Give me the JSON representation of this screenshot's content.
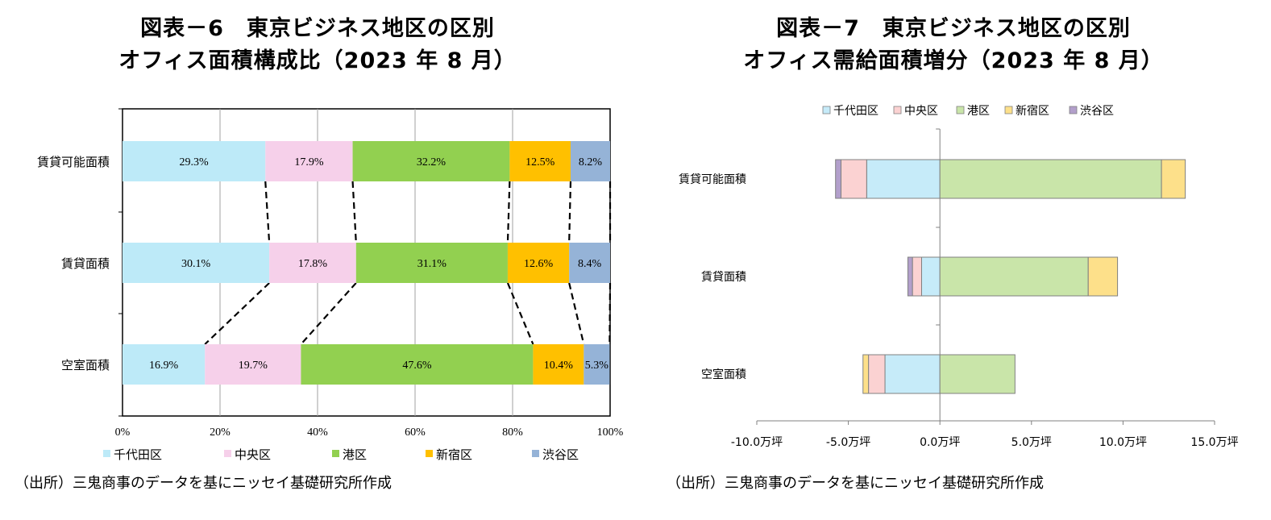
{
  "charts": {
    "left": {
      "title_line1": "図表－6　東京ビジネス地区の区別",
      "title_line2": "オフィス面積構成比（2023 年 8 月）",
      "source": "（出所）三鬼商事のデータを基にニッセイ基礎研究所作成"
    },
    "right": {
      "title_line1": "図表－7　東京ビジネス地区の区別",
      "title_line2": "オフィス需給面積増分（2023 年 8 月）",
      "source": "（出所）三鬼商事のデータを基にニッセイ基礎研究所作成"
    }
  },
  "chart_data": [
    {
      "type": "bar",
      "orientation": "horizontal",
      "stacked": "percent",
      "title": "図表－6　東京ビジネス地区の区別 オフィス面積構成比（2023 年 8 月）",
      "categories": [
        "賃貸可能面積",
        "賃貸面積",
        "空室面積"
      ],
      "series": [
        {
          "name": "千代田区",
          "color": "#bdeaf8",
          "values": [
            29.3,
            30.1,
            16.9
          ],
          "labels": [
            "29.3%",
            "30.1%",
            "16.9%"
          ]
        },
        {
          "name": "中央区",
          "color": "#f6d0ea",
          "values": [
            17.9,
            17.8,
            19.7
          ],
          "labels": [
            "17.9%",
            "17.8%",
            "19.7%"
          ]
        },
        {
          "name": "港区",
          "color": "#92d050",
          "values": [
            32.2,
            31.1,
            47.6
          ],
          "labels": [
            "32.2%",
            "31.1%",
            "47.6%"
          ]
        },
        {
          "name": "新宿区",
          "color": "#ffc000",
          "values": [
            12.5,
            12.6,
            10.4
          ],
          "labels": [
            "12.5%",
            "12.6%",
            "10.4%"
          ]
        },
        {
          "name": "渋谷区",
          "color": "#95b3d7",
          "values": [
            8.2,
            8.4,
            5.3
          ],
          "labels": [
            "8.2%",
            "8.4%",
            "5.3%"
          ]
        }
      ],
      "x_ticks": [
        "0%",
        "20%",
        "40%",
        "60%",
        "80%",
        "100%"
      ],
      "xlim": [
        0,
        100
      ],
      "grid": "vertical",
      "legend": "bottom",
      "connector_lines": "dashed"
    },
    {
      "type": "bar",
      "orientation": "horizontal",
      "stacked": "diverging",
      "title": "図表－7　東京ビジネス地区の区別 オフィス需給面積増分（2023 年 8 月）",
      "categories": [
        "賃貸可能面積",
        "賃貸面積",
        "空室面積"
      ],
      "series": [
        {
          "name": "千代田区",
          "color": "#c6ebf9",
          "values": [
            -4.0,
            -1.0,
            -3.0
          ]
        },
        {
          "name": "中央区",
          "color": "#fbd2d2",
          "values": [
            -1.4,
            -0.5,
            -0.9
          ]
        },
        {
          "name": "港区",
          "color": "#c9e5a9",
          "values": [
            12.1,
            8.1,
            4.1
          ]
        },
        {
          "name": "新宿区",
          "color": "#fde08a",
          "values": [
            1.3,
            1.6,
            -0.3
          ]
        },
        {
          "name": "渋谷区",
          "color": "#b29fcb",
          "values": [
            -0.3,
            -0.25,
            0
          ]
        }
      ],
      "x_ticks": [
        "-10.0万坪",
        "-5.0万坪",
        "0.0万坪",
        "5.0万坪",
        "10.0万坪",
        "15.0万坪"
      ],
      "xlim": [
        -10,
        15
      ],
      "grid": "none",
      "legend": "top"
    }
  ]
}
